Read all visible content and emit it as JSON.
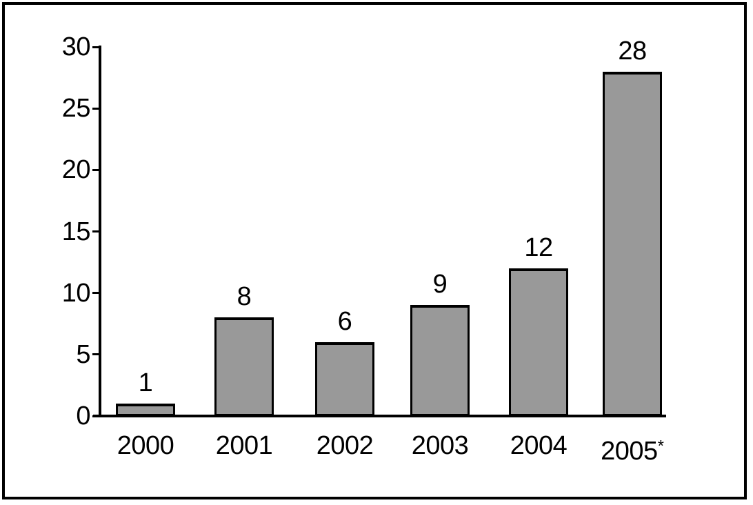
{
  "chart_data": {
    "type": "bar",
    "title": "",
    "xlabel": "",
    "ylabel": "",
    "categories": [
      "2000",
      "2001",
      "2002",
      "2003",
      "2004",
      "2005*"
    ],
    "values": [
      1,
      8,
      6,
      9,
      12,
      28
    ],
    "bar_value_labels": [
      "1",
      "8",
      "6",
      "9",
      "12",
      "28"
    ],
    "ylim": [
      0,
      30
    ],
    "yticks": [
      0,
      5,
      10,
      15,
      20,
      25,
      30
    ],
    "grid": false,
    "legend": false,
    "colors": {
      "bar_fill": "#999999",
      "bar_border": "#000000",
      "axis": "#000000",
      "text": "#000000",
      "frame_border": "#000000",
      "background": "#ffffff"
    }
  }
}
